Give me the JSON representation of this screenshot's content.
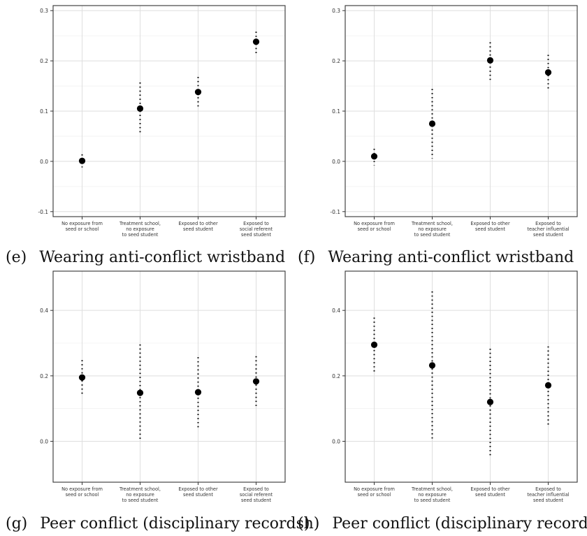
{
  "chart_data": [
    {
      "type": "scatter",
      "panel_label": "(e)",
      "caption": "Wearing anti-conflict wristband",
      "categories": [
        "No exposure from\nseed or school",
        "Treatment school,\nno exposure\nto seed student",
        "Exposed to other\nseed student",
        "Exposed to\nsocial referent\nseed student"
      ],
      "estimates": [
        0.001,
        0.105,
        0.138,
        0.238
      ],
      "ci_low": [
        -0.012,
        0.053,
        0.108,
        0.212
      ],
      "ci_high": [
        0.014,
        0.157,
        0.168,
        0.258
      ],
      "ylim": [
        -0.11,
        0.31
      ],
      "yticks": [
        -0.1,
        0.0,
        0.1,
        0.2,
        0.3
      ],
      "ytick_labels": [
        "-0.1",
        "0.0",
        "0.1",
        "0.2",
        "0.3"
      ],
      "grid": true
    },
    {
      "type": "scatter",
      "panel_label": "(f)",
      "caption": "Wearing anti-conflict wristband",
      "categories": [
        "No exposure from\nseed or school",
        "Treatment school,\nno exposure\nto seed student",
        "Exposed to other\nseed student",
        "Exposed to\nteacher influential\nseed student"
      ],
      "estimates": [
        0.01,
        0.075,
        0.201,
        0.177
      ],
      "ci_low": [
        -0.008,
        0.006,
        0.159,
        0.143
      ],
      "ci_high": [
        0.025,
        0.144,
        0.237,
        0.212
      ],
      "ylim": [
        -0.11,
        0.31
      ],
      "yticks": [
        -0.1,
        0.0,
        0.1,
        0.2,
        0.3
      ],
      "ytick_labels": [
        "-0.1",
        "0.0",
        "0.1",
        "0.2",
        "0.3"
      ],
      "grid": true
    },
    {
      "type": "scatter",
      "panel_label": "(g)",
      "caption": "Peer conflict (disciplinary records)",
      "categories": [
        "No exposure from\nseed or school",
        "Treatment school,\nno exposure\nto seed student",
        "Exposed to other\nseed student",
        "Exposed to\nsocial referent\nseed student"
      ],
      "estimates": [
        0.195,
        0.148,
        0.15,
        0.183
      ],
      "ci_low": [
        0.142,
        0.0,
        0.043,
        0.107
      ],
      "ci_high": [
        0.248,
        0.296,
        0.257,
        0.26
      ],
      "ylim": [
        -0.125,
        0.52
      ],
      "yticks": [
        0.0,
        0.2,
        0.4
      ],
      "ytick_labels": [
        "0.0",
        "0.2",
        "0.4"
      ],
      "grid": true
    },
    {
      "type": "scatter",
      "panel_label": "(h)",
      "caption": "Peer conflict (disciplinary records)",
      "categories": [
        "No exposure from\nseed or school",
        "Treatment school,\nno exposure\nto seed student",
        "Exposed to other\nseed student",
        "Exposed to\nteacher influential\nseed student"
      ],
      "estimates": [
        0.295,
        0.232,
        0.12,
        0.171
      ],
      "ci_low": [
        0.208,
        0.0,
        -0.05,
        0.045
      ],
      "ci_high": [
        0.378,
        0.458,
        0.283,
        0.29
      ],
      "ylim": [
        -0.125,
        0.52
      ],
      "yticks": [
        0.0,
        0.2,
        0.4
      ],
      "ytick_labels": [
        "0.0",
        "0.2",
        "0.4"
      ],
      "grid": true
    }
  ]
}
